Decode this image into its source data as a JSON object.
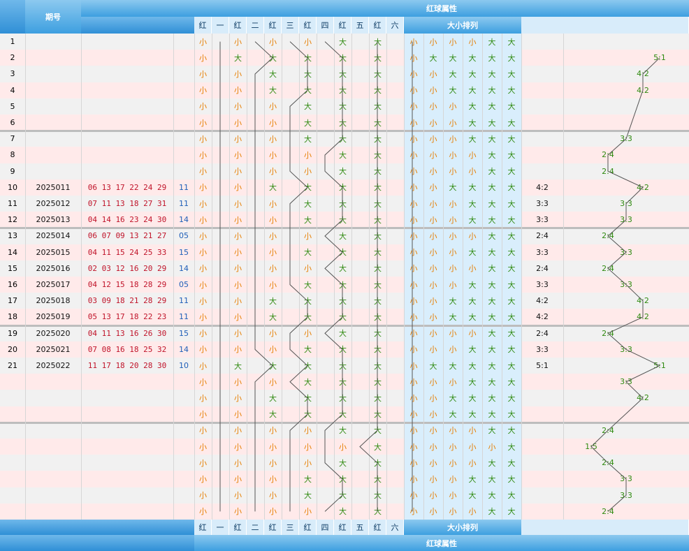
{
  "header": {
    "issue_label": "期号",
    "section_title": "红球属性",
    "pos_labels": [
      "红",
      "一",
      "红",
      "二",
      "红",
      "三",
      "红",
      "四",
      "红",
      "五",
      "红",
      "六"
    ],
    "dx_label": "大小排列"
  },
  "rows": [
    {
      "idx": "1",
      "issue": "",
      "balls": "",
      "blue": "",
      "pos": [
        "小",
        "",
        "小",
        "",
        "小",
        "",
        "小",
        "",
        "大",
        "",
        "大",
        ""
      ],
      "dx": [
        "小",
        "小",
        "小",
        "小",
        "大",
        "大"
      ],
      "ratio": "",
      "rcol": ""
    },
    {
      "idx": "2",
      "issue": "",
      "balls": "",
      "blue": "",
      "pos": [
        "小",
        "",
        "大",
        "",
        "大",
        "",
        "大",
        "",
        "大",
        "",
        "大",
        ""
      ],
      "dx": [
        "小",
        "大",
        "大",
        "大",
        "大",
        "大"
      ],
      "ratio": "",
      "rcol": "5:1"
    },
    {
      "idx": "3",
      "issue": "",
      "balls": "",
      "blue": "",
      "pos": [
        "小",
        "",
        "小",
        "",
        "大",
        "",
        "大",
        "",
        "大",
        "",
        "大",
        ""
      ],
      "dx": [
        "小",
        "小",
        "大",
        "大",
        "大",
        "大"
      ],
      "ratio": "",
      "rcol": "4:2"
    },
    {
      "idx": "4",
      "issue": "",
      "balls": "",
      "blue": "",
      "pos": [
        "小",
        "",
        "小",
        "",
        "大",
        "",
        "大",
        "",
        "大",
        "",
        "大",
        ""
      ],
      "dx": [
        "小",
        "小",
        "大",
        "大",
        "大",
        "大"
      ],
      "ratio": "",
      "rcol": "4:2"
    },
    {
      "idx": "5",
      "issue": "",
      "balls": "",
      "blue": "",
      "pos": [
        "小",
        "",
        "小",
        "",
        "小",
        "",
        "大",
        "",
        "大",
        "",
        "大",
        ""
      ],
      "dx": [
        "小",
        "小",
        "小",
        "大",
        "大",
        "大"
      ],
      "ratio": "",
      "rcol": ""
    },
    {
      "idx": "6",
      "issue": "",
      "balls": "",
      "blue": "",
      "pos": [
        "小",
        "",
        "小",
        "",
        "小",
        "",
        "大",
        "",
        "大",
        "",
        "大",
        ""
      ],
      "dx": [
        "小",
        "小",
        "小",
        "大",
        "大",
        "大"
      ],
      "ratio": "",
      "rcol": ""
    },
    {
      "idx": "7",
      "issue": "",
      "balls": "",
      "blue": "",
      "pos": [
        "小",
        "",
        "小",
        "",
        "小",
        "",
        "大",
        "",
        "大",
        "",
        "大",
        ""
      ],
      "dx": [
        "小",
        "小",
        "小",
        "大",
        "大",
        "大"
      ],
      "ratio": "",
      "rcol": "3:3"
    },
    {
      "idx": "8",
      "issue": "",
      "balls": "",
      "blue": "",
      "pos": [
        "小",
        "",
        "小",
        "",
        "小",
        "",
        "小",
        "",
        "大",
        "",
        "大",
        ""
      ],
      "dx": [
        "小",
        "小",
        "小",
        "小",
        "大",
        "大"
      ],
      "ratio": "",
      "rcol": "2:4"
    },
    {
      "idx": "9",
      "issue": "",
      "balls": "",
      "blue": "",
      "pos": [
        "小",
        "",
        "小",
        "",
        "小",
        "",
        "小",
        "",
        "大",
        "",
        "大",
        ""
      ],
      "dx": [
        "小",
        "小",
        "小",
        "小",
        "大",
        "大"
      ],
      "ratio": "",
      "rcol": "2:4"
    },
    {
      "idx": "10",
      "issue": "2025011",
      "balls": "06 13 17 22 24 29",
      "blue": "11",
      "pos": [
        "小",
        "",
        "小",
        "",
        "大",
        "",
        "大",
        "",
        "大",
        "",
        "大",
        ""
      ],
      "dx": [
        "小",
        "小",
        "大",
        "大",
        "大",
        "大"
      ],
      "ratio": "4:2",
      "rcol": "4:2"
    },
    {
      "idx": "11",
      "issue": "2025012",
      "balls": "07 11 13 18 27 31",
      "blue": "11",
      "pos": [
        "小",
        "",
        "小",
        "",
        "小",
        "",
        "大",
        "",
        "大",
        "",
        "大",
        ""
      ],
      "dx": [
        "小",
        "小",
        "小",
        "大",
        "大",
        "大"
      ],
      "ratio": "3:3",
      "rcol": "3:3"
    },
    {
      "idx": "12",
      "issue": "2025013",
      "balls": "04 14 16 23 24 30",
      "blue": "14",
      "pos": [
        "小",
        "",
        "小",
        "",
        "小",
        "",
        "大",
        "",
        "大",
        "",
        "大",
        ""
      ],
      "dx": [
        "小",
        "小",
        "小",
        "大",
        "大",
        "大"
      ],
      "ratio": "3:3",
      "rcol": "3:3"
    },
    {
      "idx": "13",
      "issue": "2025014",
      "balls": "06 07 09 13 21 27",
      "blue": "05",
      "pos": [
        "小",
        "",
        "小",
        "",
        "小",
        "",
        "小",
        "",
        "大",
        "",
        "大",
        ""
      ],
      "dx": [
        "小",
        "小",
        "小",
        "小",
        "大",
        "大"
      ],
      "ratio": "2:4",
      "rcol": "2:4"
    },
    {
      "idx": "14",
      "issue": "2025015",
      "balls": "04 11 15 24 25 33",
      "blue": "15",
      "pos": [
        "小",
        "",
        "小",
        "",
        "小",
        "",
        "大",
        "",
        "大",
        "",
        "大",
        ""
      ],
      "dx": [
        "小",
        "小",
        "小",
        "大",
        "大",
        "大"
      ],
      "ratio": "3:3",
      "rcol": "3:3"
    },
    {
      "idx": "15",
      "issue": "2025016",
      "balls": "02 03 12 16 20 29",
      "blue": "14",
      "pos": [
        "小",
        "",
        "小",
        "",
        "小",
        "",
        "小",
        "",
        "大",
        "",
        "大",
        ""
      ],
      "dx": [
        "小",
        "小",
        "小",
        "小",
        "大",
        "大"
      ],
      "ratio": "2:4",
      "rcol": "2:4"
    },
    {
      "idx": "16",
      "issue": "2025017",
      "balls": "04 12 15 18 28 29",
      "blue": "05",
      "pos": [
        "小",
        "",
        "小",
        "",
        "小",
        "",
        "大",
        "",
        "大",
        "",
        "大",
        ""
      ],
      "dx": [
        "小",
        "小",
        "小",
        "大",
        "大",
        "大"
      ],
      "ratio": "3:3",
      "rcol": "3:3"
    },
    {
      "idx": "17",
      "issue": "2025018",
      "balls": "03 09 18 21 28 29",
      "blue": "11",
      "pos": [
        "小",
        "",
        "小",
        "",
        "大",
        "",
        "大",
        "",
        "大",
        "",
        "大",
        ""
      ],
      "dx": [
        "小",
        "小",
        "大",
        "大",
        "大",
        "大"
      ],
      "ratio": "4:2",
      "rcol": "4:2"
    },
    {
      "idx": "18",
      "issue": "2025019",
      "balls": "05 13 17 18 22 23",
      "blue": "11",
      "pos": [
        "小",
        "",
        "小",
        "",
        "大",
        "",
        "大",
        "",
        "大",
        "",
        "大",
        ""
      ],
      "dx": [
        "小",
        "小",
        "大",
        "大",
        "大",
        "大"
      ],
      "ratio": "4:2",
      "rcol": "4:2"
    },
    {
      "idx": "19",
      "issue": "2025020",
      "balls": "04 11 13 16 26 30",
      "blue": "15",
      "pos": [
        "小",
        "",
        "小",
        "",
        "小",
        "",
        "小",
        "",
        "大",
        "",
        "大",
        ""
      ],
      "dx": [
        "小",
        "小",
        "小",
        "小",
        "大",
        "大"
      ],
      "ratio": "2:4",
      "rcol": "2:4"
    },
    {
      "idx": "20",
      "issue": "2025021",
      "balls": "07 08 16 18 25 32",
      "blue": "14",
      "pos": [
        "小",
        "",
        "小",
        "",
        "小",
        "",
        "大",
        "",
        "大",
        "",
        "大",
        ""
      ],
      "dx": [
        "小",
        "小",
        "小",
        "大",
        "大",
        "大"
      ],
      "ratio": "3:3",
      "rcol": "3:3"
    },
    {
      "idx": "21",
      "issue": "2025022",
      "balls": "11 17 18 20 28 30",
      "blue": "10",
      "pos": [
        "小",
        "",
        "大",
        "",
        "大",
        "",
        "大",
        "",
        "大",
        "",
        "大",
        ""
      ],
      "dx": [
        "小",
        "大",
        "大",
        "大",
        "大",
        "大"
      ],
      "ratio": "5:1",
      "rcol": "5:1"
    },
    {
      "idx": "",
      "issue": "",
      "balls": "",
      "blue": "",
      "pos": [
        "小",
        "",
        "小",
        "",
        "小",
        "",
        "大",
        "",
        "大",
        "",
        "大",
        ""
      ],
      "dx": [
        "小",
        "小",
        "小",
        "大",
        "大",
        "大"
      ],
      "ratio": "",
      "rcol": "3:3"
    },
    {
      "idx": "",
      "issue": "",
      "balls": "",
      "blue": "",
      "pos": [
        "小",
        "",
        "小",
        "",
        "大",
        "",
        "大",
        "",
        "大",
        "",
        "大",
        ""
      ],
      "dx": [
        "小",
        "小",
        "大",
        "大",
        "大",
        "大"
      ],
      "ratio": "",
      "rcol": "4:2"
    },
    {
      "idx": "",
      "issue": "",
      "balls": "",
      "blue": "",
      "pos": [
        "小",
        "",
        "小",
        "",
        "大",
        "",
        "大",
        "",
        "大",
        "",
        "大",
        ""
      ],
      "dx": [
        "小",
        "小",
        "大",
        "大",
        "大",
        "大"
      ],
      "ratio": "",
      "rcol": ""
    },
    {
      "idx": "",
      "issue": "",
      "balls": "",
      "blue": "",
      "pos": [
        "小",
        "",
        "小",
        "",
        "小",
        "",
        "小",
        "",
        "大",
        "",
        "大",
        ""
      ],
      "dx": [
        "小",
        "小",
        "小",
        "小",
        "大",
        "大"
      ],
      "ratio": "",
      "rcol": "2:4"
    },
    {
      "idx": "",
      "issue": "",
      "balls": "",
      "blue": "",
      "pos": [
        "小",
        "",
        "小",
        "",
        "小",
        "",
        "小",
        "",
        "小",
        "",
        "大",
        ""
      ],
      "dx": [
        "小",
        "小",
        "小",
        "小",
        "小",
        "大"
      ],
      "ratio": "",
      "rcol": "1:5"
    },
    {
      "idx": "",
      "issue": "",
      "balls": "",
      "blue": "",
      "pos": [
        "小",
        "",
        "小",
        "",
        "小",
        "",
        "小",
        "",
        "大",
        "",
        "大",
        ""
      ],
      "dx": [
        "小",
        "小",
        "小",
        "小",
        "大",
        "大"
      ],
      "ratio": "",
      "rcol": "2:4"
    },
    {
      "idx": "",
      "issue": "",
      "balls": "",
      "blue": "",
      "pos": [
        "小",
        "",
        "小",
        "",
        "小",
        "",
        "大",
        "",
        "大",
        "",
        "大",
        ""
      ],
      "dx": [
        "小",
        "小",
        "小",
        "大",
        "大",
        "大"
      ],
      "ratio": "",
      "rcol": "3:3"
    },
    {
      "idx": "",
      "issue": "",
      "balls": "",
      "blue": "",
      "pos": [
        "小",
        "",
        "小",
        "",
        "小",
        "",
        "大",
        "",
        "大",
        "",
        "大",
        ""
      ],
      "dx": [
        "小",
        "小",
        "小",
        "大",
        "大",
        "大"
      ],
      "ratio": "",
      "rcol": "3:3"
    },
    {
      "idx": "",
      "issue": "",
      "balls": "",
      "blue": "",
      "pos": [
        "小",
        "",
        "小",
        "",
        "小",
        "",
        "小",
        "",
        "大",
        "",
        "大",
        ""
      ],
      "dx": [
        "小",
        "小",
        "小",
        "小",
        "大",
        "大"
      ],
      "ratio": "",
      "rcol": "2:4"
    }
  ],
  "colors": {
    "small": "#e67e00",
    "big": "#2f8a10",
    "red_ball": "#c0142a",
    "blue_ball": "#1f5fb8",
    "header": "#3d9fe0"
  }
}
